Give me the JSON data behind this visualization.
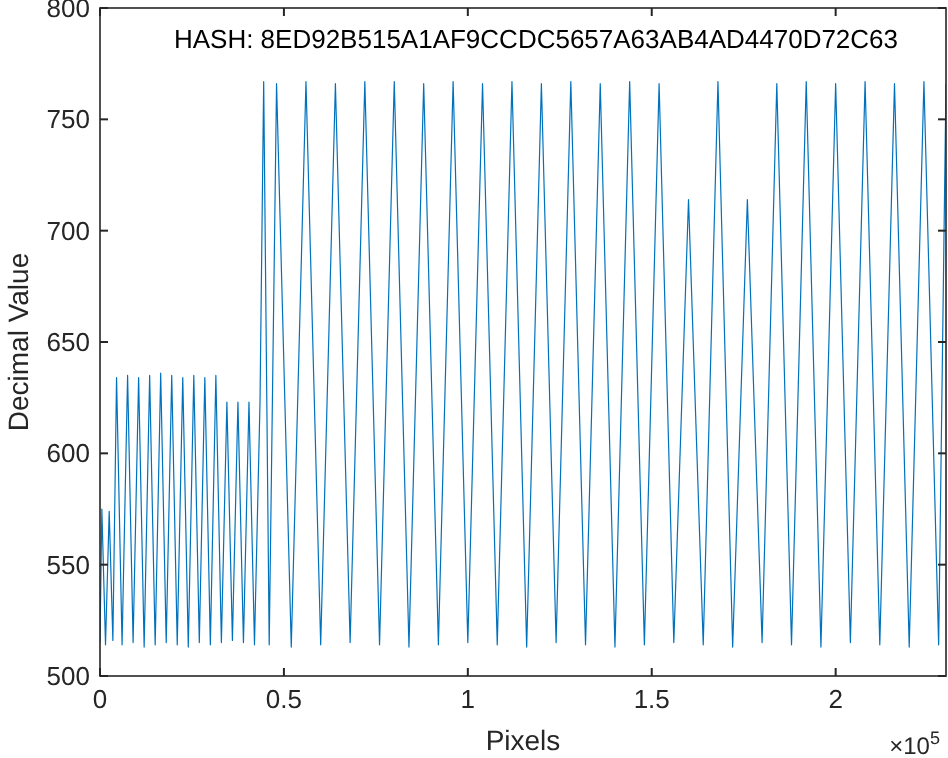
{
  "chart_data": {
    "type": "line",
    "xlabel": "Pixels",
    "ylabel": "Decimal Value",
    "annotations": [
      "HASH: 8ED92B515A1AF9CCDC5657A63AB4AD4470D72C63",
      "×10$^{5}$"
    ],
    "xlim": [
      0,
      2.3
    ],
    "ylim": [
      500,
      800
    ],
    "xticks": [
      0,
      0.5,
      1,
      1.5,
      2
    ],
    "yticks": [
      500,
      550,
      600,
      650,
      700,
      750,
      800
    ],
    "grid": false,
    "marker": "none",
    "line_style": "solid",
    "series": [
      {
        "color": "#0072bd",
        "x": [
          0,
          0.005,
          0.015,
          0.025,
          0.035,
          0.045,
          0.06,
          0.075,
          0.09,
          0.105,
          0.12,
          0.135,
          0.15,
          0.165,
          0.18,
          0.195,
          0.21,
          0.225,
          0.24,
          0.255,
          0.27,
          0.285,
          0.3,
          0.315,
          0.33,
          0.345,
          0.36,
          0.375,
          0.39,
          0.405,
          0.42,
          0.435,
          0.445,
          0.46,
          0.48,
          0.52,
          0.56,
          0.6,
          0.64,
          0.68,
          0.72,
          0.76,
          0.8,
          0.84,
          0.88,
          0.92,
          0.96,
          1,
          1.04,
          1.08,
          1.12,
          1.16,
          1.2,
          1.24,
          1.28,
          1.32,
          1.36,
          1.4,
          1.44,
          1.48,
          1.52,
          1.56,
          1.6,
          1.64,
          1.68,
          1.72,
          1.76,
          1.8,
          1.84,
          1.88,
          1.92,
          1.96,
          2,
          2.04,
          2.08,
          2.12,
          2.16,
          2.2,
          2.24,
          2.28,
          2.3
        ],
        "values": [
          515,
          575,
          514,
          574,
          516,
          634,
          514,
          635,
          515,
          634,
          513,
          635,
          514,
          636,
          515,
          635,
          514,
          634,
          513,
          635,
          515,
          634,
          514,
          635,
          515,
          623,
          516,
          623,
          515,
          623,
          514,
          623,
          767,
          514,
          766,
          513,
          767,
          514,
          766,
          515,
          767,
          514,
          767,
          513,
          766,
          514,
          767,
          515,
          766,
          514,
          767,
          513,
          766,
          515,
          767,
          514,
          766,
          513,
          767,
          514,
          766,
          515,
          714,
          514,
          767,
          513,
          714,
          515,
          766,
          514,
          767,
          513,
          766,
          515,
          767,
          514,
          766,
          513,
          767,
          514,
          766
        ]
      }
    ]
  }
}
